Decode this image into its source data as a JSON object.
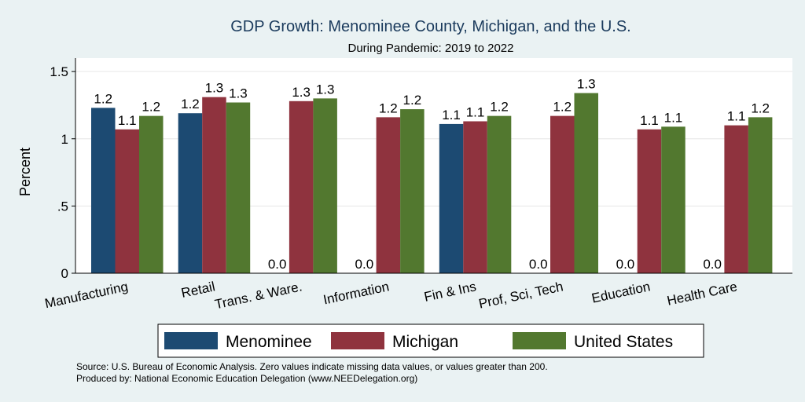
{
  "chart_data": {
    "type": "bar",
    "title": "GDP Growth: Menominee County, Michigan, and the U.S.",
    "subtitle": "During Pandemic: 2019 to 2022",
    "ylabel": "Percent",
    "ylim": [
      0,
      1.6
    ],
    "yticks": [
      0,
      0.5,
      1,
      1.5
    ],
    "ytick_labels": [
      "0",
      ".5",
      "1",
      "1.5"
    ],
    "grid": true,
    "legend_position": "bottom",
    "categories": [
      "Manufacturing",
      "Retail",
      "Trans. & Ware.",
      "Information",
      "Fin & Ins",
      "Prof, Sci, Tech",
      "Education",
      "Health Care"
    ],
    "series": [
      {
        "name": "Menominee",
        "color": "#1c4a72",
        "values": [
          1.23,
          1.19,
          0,
          0,
          1.11,
          0,
          0,
          0
        ],
        "labels": [
          "1.2",
          "1.2",
          "0.0",
          "0.0",
          "1.1",
          "0.0",
          "0.0",
          "0.0"
        ]
      },
      {
        "name": "Michigan",
        "color": "#8f333e",
        "values": [
          1.07,
          1.31,
          1.28,
          1.16,
          1.13,
          1.17,
          1.07,
          1.1
        ],
        "labels": [
          "1.1",
          "1.3",
          "1.3",
          "1.2",
          "1.1",
          "1.2",
          "1.1",
          "1.1"
        ]
      },
      {
        "name": "United States",
        "color": "#52782f",
        "values": [
          1.17,
          1.27,
          1.3,
          1.22,
          1.17,
          1.34,
          1.09,
          1.16
        ],
        "labels": [
          "1.2",
          "1.3",
          "1.3",
          "1.2",
          "1.2",
          "1.3",
          "1.1",
          "1.2"
        ]
      }
    ]
  },
  "footer": {
    "source": "Source: U.S. Bureau of Economic Analysis. Zero values indicate missing data values, or values greater than 200.",
    "produced_by": "Produced by: National Economic Education Delegation (www.NEEDelegation.org)"
  }
}
